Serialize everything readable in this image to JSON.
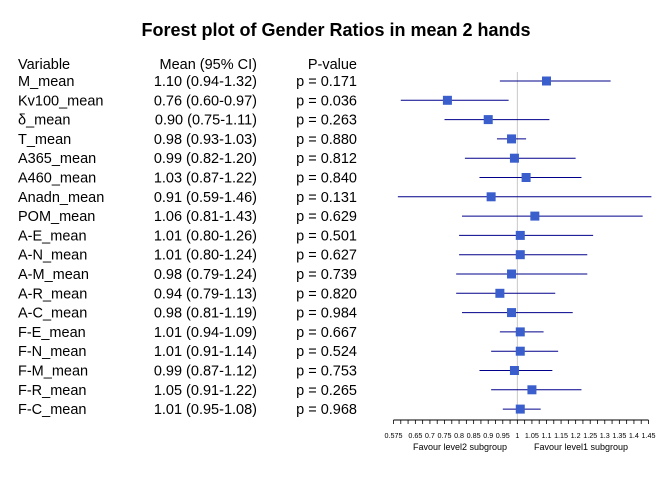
{
  "chart_data": {
    "type": "forest",
    "title": "Forest plot of Gender Ratios in mean 2 hands",
    "headers": {
      "variable": "Variable",
      "mean": "Mean (95% CI)",
      "pvalue": "P-value"
    },
    "rows": [
      {
        "variable": "M_mean",
        "mean_ci": "1.10 (0.94-1.32)",
        "p": "p = 0.171",
        "est": 1.1,
        "lo": 0.94,
        "hi": 1.32
      },
      {
        "variable": "Kv100_mean",
        "mean_ci": "0.76 (0.60-0.97)",
        "p": "p = 0.036",
        "est": 0.76,
        "lo": 0.6,
        "hi": 0.97
      },
      {
        "variable": "δ_mean",
        "mean_ci": "0.90 (0.75-1.11)",
        "p": "p = 0.263",
        "est": 0.9,
        "lo": 0.75,
        "hi": 1.11
      },
      {
        "variable": "T_mean",
        "mean_ci": "0.98 (0.93-1.03)",
        "p": "p = 0.880",
        "est": 0.98,
        "lo": 0.93,
        "hi": 1.03
      },
      {
        "variable": "A365_mean",
        "mean_ci": "0.99 (0.82-1.20)",
        "p": "p = 0.812",
        "est": 0.99,
        "lo": 0.82,
        "hi": 1.2
      },
      {
        "variable": "A460_mean",
        "mean_ci": "1.03 (0.87-1.22)",
        "p": "p = 0.840",
        "est": 1.03,
        "lo": 0.87,
        "hi": 1.22
      },
      {
        "variable": "Anadn_mean",
        "mean_ci": "0.91 (0.59-1.46)",
        "p": "p = 0.131",
        "est": 0.91,
        "lo": 0.59,
        "hi": 1.46
      },
      {
        "variable": "POM_mean",
        "mean_ci": "1.06 (0.81-1.43)",
        "p": "p = 0.629",
        "est": 1.06,
        "lo": 0.81,
        "hi": 1.43
      },
      {
        "variable": "A-E_mean",
        "mean_ci": "1.01 (0.80-1.26)",
        "p": "p = 0.501",
        "est": 1.01,
        "lo": 0.8,
        "hi": 1.26
      },
      {
        "variable": "A-N_mean",
        "mean_ci": "1.01 (0.80-1.24)",
        "p": "p = 0.627",
        "est": 1.01,
        "lo": 0.8,
        "hi": 1.24
      },
      {
        "variable": "A-M_mean",
        "mean_ci": "0.98 (0.79-1.24)",
        "p": "p = 0.739",
        "est": 0.98,
        "lo": 0.79,
        "hi": 1.24
      },
      {
        "variable": "A-R_mean",
        "mean_ci": "0.94 (0.79-1.13)",
        "p": "p = 0.820",
        "est": 0.94,
        "lo": 0.79,
        "hi": 1.13
      },
      {
        "variable": "A-C_mean",
        "mean_ci": "0.98 (0.81-1.19)",
        "p": "p = 0.984",
        "est": 0.98,
        "lo": 0.81,
        "hi": 1.19
      },
      {
        "variable": "F-E_mean",
        "mean_ci": "1.01 (0.94-1.09)",
        "p": "p = 0.667",
        "est": 1.01,
        "lo": 0.94,
        "hi": 1.09
      },
      {
        "variable": "F-N_mean",
        "mean_ci": "1.01 (0.91-1.14)",
        "p": "p = 0.524",
        "est": 1.01,
        "lo": 0.91,
        "hi": 1.14
      },
      {
        "variable": "F-M_mean",
        "mean_ci": "0.99 (0.87-1.12)",
        "p": "p = 0.753",
        "est": 0.99,
        "lo": 0.87,
        "hi": 1.12
      },
      {
        "variable": "F-R_mean",
        "mean_ci": "1.05 (0.91-1.22)",
        "p": "p = 0.265",
        "est": 1.05,
        "lo": 0.91,
        "hi": 1.22
      },
      {
        "variable": "F-C_mean",
        "mean_ci": "1.01 (0.95-1.08)",
        "p": "p = 0.968",
        "est": 1.01,
        "lo": 0.95,
        "hi": 1.08
      }
    ],
    "x_axis": {
      "ticks": [
        "0.575",
        "0.65",
        "0.7",
        "0.75",
        "0.8",
        "0.85",
        "0.9",
        "0.95",
        "1",
        "1.05",
        "1.1",
        "1.15",
        "1.2",
        "1.25",
        "1.3",
        "1.35",
        "1.4",
        "1.45"
      ],
      "reference": 1,
      "xlim": [
        0.575,
        1.45
      ],
      "minor_step": 0.025
    },
    "favour_left": "Favour level2 subgroup",
    "favour_right": "Favour level1 subgroup",
    "colors": {
      "point": "#3a5fcd",
      "line": "#00008b",
      "reference": "#c8c8c8"
    }
  }
}
